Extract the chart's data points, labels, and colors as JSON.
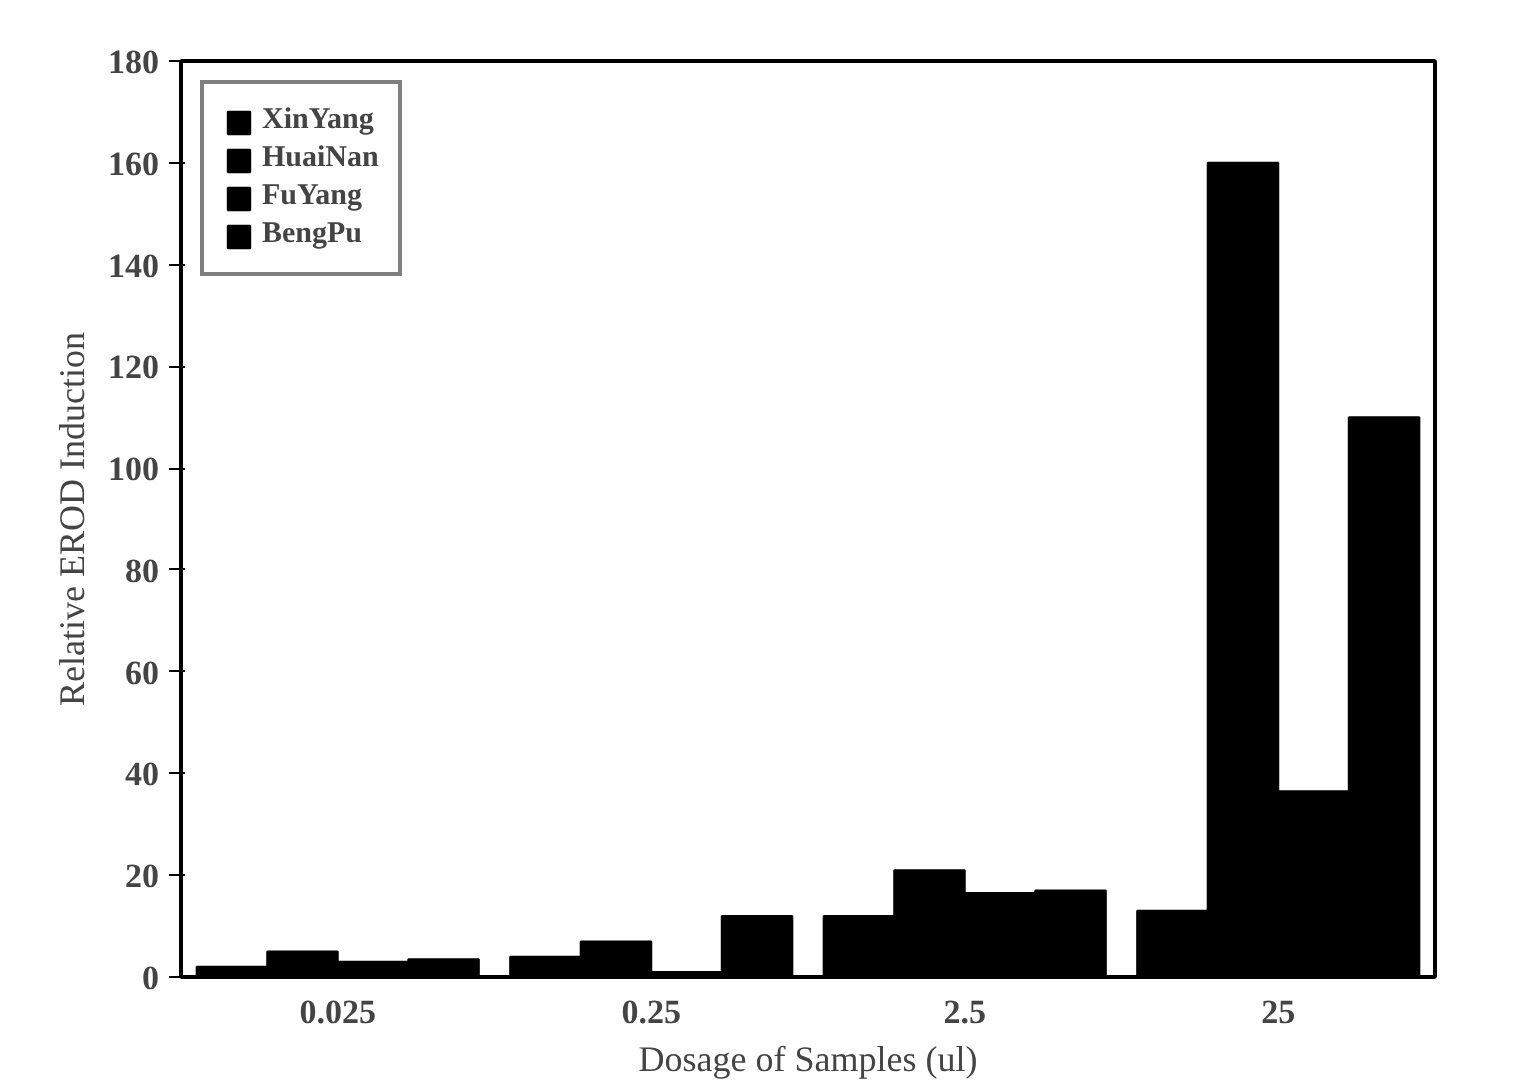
{
  "chart_data": {
    "type": "bar",
    "xlabel": "Dosage of Samples (ul)",
    "ylabel": "Relative EROD Induction",
    "categories": [
      "0.025",
      "0.25",
      "2.5",
      "25"
    ],
    "series": [
      {
        "name": "XinYang",
        "color": "#000000",
        "values": [
          2,
          4,
          12,
          13
        ]
      },
      {
        "name": "HuaiNan",
        "color": "#000000",
        "values": [
          5,
          7,
          21,
          160
        ]
      },
      {
        "name": "FuYang",
        "color": "#000000",
        "values": [
          3,
          1,
          16.5,
          36.5
        ]
      },
      {
        "name": "BengPu",
        "color": "#000000",
        "values": [
          3.5,
          12,
          17,
          110
        ]
      }
    ],
    "ylim": [
      0,
      180
    ],
    "yticks": [
      0,
      20,
      40,
      60,
      80,
      100,
      120,
      140,
      160,
      180
    ],
    "grid": false,
    "legend": "top left"
  }
}
